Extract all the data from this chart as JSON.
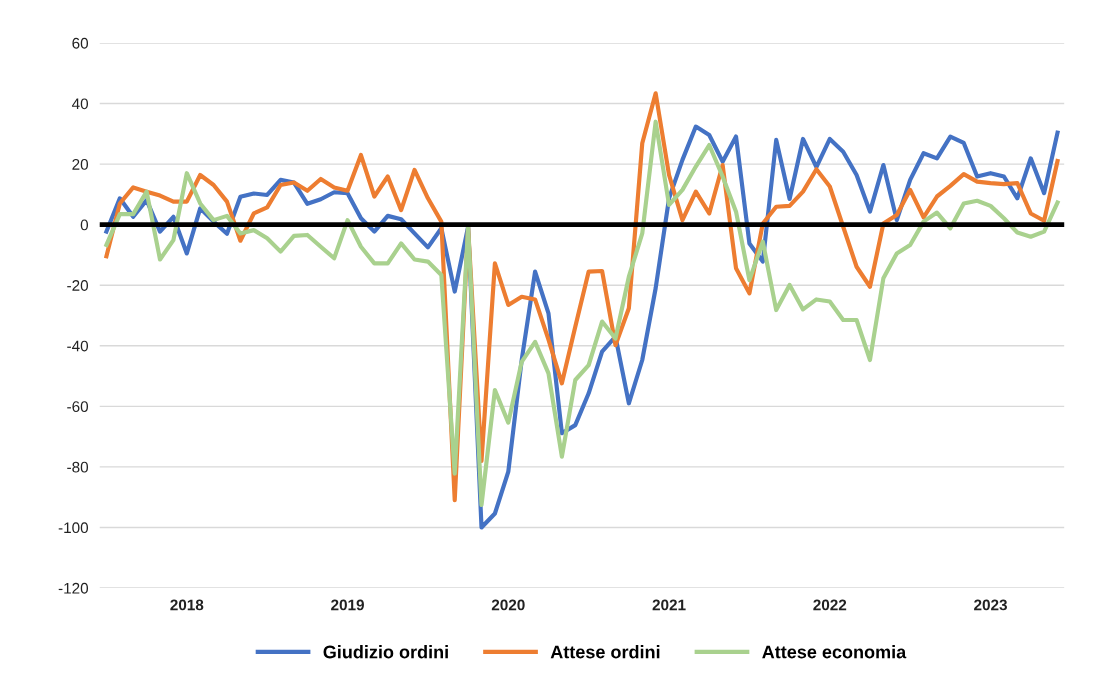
{
  "chart_data": {
    "type": "line",
    "categories": [
      null,
      null,
      null,
      null,
      null,
      null,
      "2018",
      null,
      null,
      null,
      null,
      null,
      null,
      null,
      null,
      null,
      null,
      null,
      "2019",
      null,
      null,
      null,
      null,
      null,
      null,
      null,
      null,
      null,
      null,
      null,
      "2020",
      null,
      null,
      null,
      null,
      null,
      null,
      null,
      null,
      null,
      null,
      null,
      "2021",
      null,
      null,
      null,
      null,
      null,
      null,
      null,
      null,
      null,
      null,
      null,
      "2022",
      null,
      null,
      null,
      null,
      null,
      null,
      null,
      null,
      null,
      null,
      null,
      "2023",
      null,
      null,
      null,
      null,
      null
    ],
    "series": [
      {
        "name": "Giudizio ordini",
        "color": "#4472c4",
        "values": [
          -2.3,
          8.7,
          2.6,
          8.1,
          -2.3,
          2.6,
          -9.5,
          5.4,
          1,
          -3,
          9.2,
          10.3,
          9.8,
          14.8,
          13.9,
          6.9,
          8.4,
          10.7,
          10.4,
          2.1,
          -2.3,
          2.9,
          1.8,
          -2.9,
          -7.5,
          -1.2,
          -22.1,
          -0.7,
          -100,
          -95.4,
          -81.6,
          -44.7,
          -15.5,
          -29.3,
          -68.9,
          -66.2,
          -55.7,
          -41.9,
          -37,
          -59,
          -44.7,
          -21,
          8.7,
          21.4,
          32.4,
          29.6,
          20.8,
          29.1,
          -6.2,
          -12.2,
          28,
          8.5,
          28.3,
          19,
          28.3,
          24.1,
          16.4,
          4.3,
          19.7,
          1.5,
          14.8,
          23.6,
          21.9,
          29.1,
          27,
          15.9,
          17,
          15.9,
          8.7,
          21.9,
          10.4,
          30.4
        ]
      },
      {
        "name": "Attese ordini",
        "color": "#ed7d31",
        "values": [
          -10.4,
          7,
          12.3,
          10.9,
          9.6,
          7.6,
          7.6,
          16.4,
          13.1,
          7.6,
          -5.3,
          3.7,
          5.7,
          13.1,
          13.9,
          11.2,
          15.1,
          12.3,
          11.2,
          23,
          9.3,
          15.9,
          4.8,
          18.1,
          8.7,
          1,
          -91,
          -1,
          -78,
          -12.8,
          -26.5,
          -23.8,
          -24.7,
          -38,
          -52.4,
          -33.7,
          -15.5,
          -15.3,
          -39.8,
          -27.6,
          26.9,
          43.4,
          16.4,
          1.5,
          10.9,
          3.7,
          19.7,
          -14.4,
          -22.7,
          0.4,
          5.9,
          6.2,
          10.9,
          18.3,
          12.6,
          -0.7,
          -13.9,
          -20.5,
          0.4,
          3.2,
          11.5,
          2.4,
          9.3,
          12.8,
          16.7,
          14.2,
          13.7,
          13.4,
          13.7,
          3.7,
          1.3,
          21
        ]
      },
      {
        "name": "Attese economia",
        "color": "#a9d18e",
        "values": [
          -6.7,
          3.5,
          3.5,
          10.9,
          -11.5,
          -5.1,
          17,
          7,
          1.5,
          2.9,
          -2.9,
          -1.8,
          -4.5,
          -8.9,
          -3.7,
          -3.4,
          -7.3,
          -11.1,
          1.5,
          -7.3,
          -12.8,
          -12.8,
          -6.2,
          -11.5,
          -12.2,
          -16.6,
          -82.2,
          -0.7,
          -92.6,
          -54.6,
          -65.4,
          -45.3,
          -38.7,
          -49.1,
          -76.6,
          -51.3,
          -46.4,
          -32,
          -37.6,
          -17.2,
          -2.9,
          34,
          6.5,
          11.5,
          19.2,
          26.3,
          15.9,
          4.3,
          -18.3,
          -5.6,
          -28.2,
          -19.9,
          -28,
          -24.7,
          -25.4,
          -31.5,
          -31.5,
          -44.7,
          -17.7,
          -9.5,
          -6.7,
          1,
          4,
          -1.2,
          7,
          7.9,
          6.2,
          2.1,
          -2.6,
          -4,
          -2.3,
          7.3
        ]
      }
    ],
    "ylim": [
      -120,
      60
    ],
    "yticks": [
      -120,
      -100,
      -80,
      -60,
      -40,
      -20,
      0,
      20,
      40,
      60
    ],
    "grid": "y",
    "legend": "bottom",
    "marker": "none",
    "line_style": "solid",
    "ref_lines": [
      {
        "axis": "y",
        "value": 0,
        "color": "#000000"
      }
    ]
  }
}
